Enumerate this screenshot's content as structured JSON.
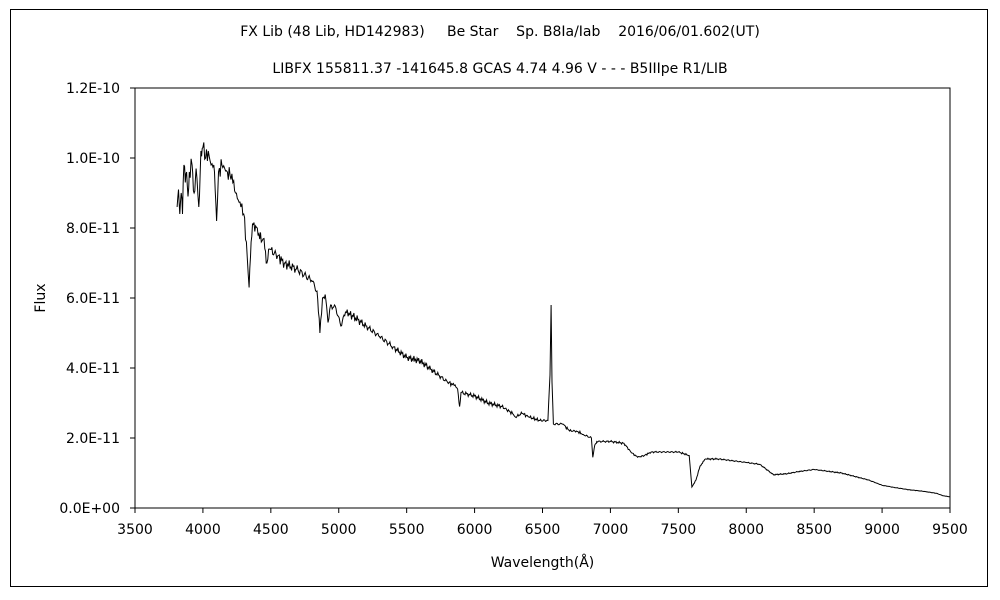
{
  "chart_data": {
    "type": "line",
    "title": "FX Lib (48 Lib, HD142983)     Be Star    Sp. B8Ia/Iab    2016/06/01.602(UT)",
    "subtitle": "LIBFX 155811.37 -141645.8 GCAS 4.74 4.96 V - - - B5IIIpe R1/LIB",
    "xlabel": "Wavelength(Å)",
    "ylabel": "Flux",
    "xlim": [
      3500,
      9500
    ],
    "ylim": [
      0,
      1.2e-10
    ],
    "x_ticks": [
      "3500",
      "4000",
      "4500",
      "5000",
      "5500",
      "6000",
      "6500",
      "7000",
      "7500",
      "8000",
      "8500",
      "9000",
      "9500"
    ],
    "y_ticks": [
      "0.0E+00",
      "2.0E-11",
      "4.0E-11",
      "6.0E-11",
      "8.0E-11",
      "1.0E-10",
      "1.2E-10"
    ],
    "grid": false,
    "legend": "none",
    "series": [
      {
        "color": "#000000",
        "points": [
          [
            3810,
            8.6e-11
          ],
          [
            3820,
            9.1e-11
          ],
          [
            3830,
            8.4e-11
          ],
          [
            3840,
            9e-11
          ],
          [
            3850,
            8.4e-11
          ],
          [
            3860,
            9.8e-11
          ],
          [
            3870,
            9.3e-11
          ],
          [
            3880,
            9.6e-11
          ],
          [
            3890,
            8.9e-11
          ],
          [
            3900,
            9.6e-11
          ],
          [
            3920,
            9.8e-11
          ],
          [
            3935,
            9e-11
          ],
          [
            3950,
            9.7e-11
          ],
          [
            3970,
            8.6e-11
          ],
          [
            3985,
            1.02e-10
          ],
          [
            4000,
            1.03e-10
          ],
          [
            4020,
            1e-10
          ],
          [
            4040,
            1.02e-10
          ],
          [
            4060,
            9.8e-11
          ],
          [
            4080,
            9.8e-11
          ],
          [
            4101,
            8.2e-11
          ],
          [
            4115,
            9.6e-11
          ],
          [
            4140,
            9.8e-11
          ],
          [
            4160,
            9.7e-11
          ],
          [
            4180,
            9.6e-11
          ],
          [
            4200,
            9.5e-11
          ],
          [
            4220,
            9.3e-11
          ],
          [
            4240,
            9e-11
          ],
          [
            4260,
            8.8e-11
          ],
          [
            4280,
            8.6e-11
          ],
          [
            4300,
            8.4e-11
          ],
          [
            4320,
            7.6e-11
          ],
          [
            4340,
            6.3e-11
          ],
          [
            4355,
            7.6e-11
          ],
          [
            4370,
            8.1e-11
          ],
          [
            4400,
            8e-11
          ],
          [
            4430,
            7.6e-11
          ],
          [
            4450,
            7.7e-11
          ],
          [
            4471,
            7e-11
          ],
          [
            4490,
            7.4e-11
          ],
          [
            4550,
            7.2e-11
          ],
          [
            4600,
            7e-11
          ],
          [
            4700,
            6.8e-11
          ],
          [
            4800,
            6.5e-11
          ],
          [
            4840,
            6.2e-11
          ],
          [
            4861,
            5e-11
          ],
          [
            4880,
            6e-11
          ],
          [
            4900,
            6.1e-11
          ],
          [
            4921,
            5.3e-11
          ],
          [
            4940,
            5.8e-11
          ],
          [
            4980,
            5.7e-11
          ],
          [
            5015,
            5.2e-11
          ],
          [
            5050,
            5.6e-11
          ],
          [
            5100,
            5.5e-11
          ],
          [
            5200,
            5.2e-11
          ],
          [
            5300,
            4.9e-11
          ],
          [
            5400,
            4.6e-11
          ],
          [
            5500,
            4.3e-11
          ],
          [
            5600,
            4.2e-11
          ],
          [
            5700,
            3.9e-11
          ],
          [
            5800,
            3.6e-11
          ],
          [
            5850,
            3.5e-11
          ],
          [
            5875,
            3.4e-11
          ],
          [
            5890,
            2.9e-11
          ],
          [
            5900,
            3.3e-11
          ],
          [
            6000,
            3.2e-11
          ],
          [
            6100,
            3e-11
          ],
          [
            6200,
            2.9e-11
          ],
          [
            6280,
            2.7e-11
          ],
          [
            6300,
            2.6e-11
          ],
          [
            6350,
            2.7e-11
          ],
          [
            6400,
            2.6e-11
          ],
          [
            6480,
            2.5e-11
          ],
          [
            6540,
            2.5e-11
          ],
          [
            6555,
            3.8e-11
          ],
          [
            6563,
            5.8e-11
          ],
          [
            6570,
            3.6e-11
          ],
          [
            6580,
            2.4e-11
          ],
          [
            6650,
            2.4e-11
          ],
          [
            6700,
            2.2e-11
          ],
          [
            6750,
            2.2e-11
          ],
          [
            6800,
            2.1e-11
          ],
          [
            6860,
            2e-11
          ],
          [
            6870,
            1.45e-11
          ],
          [
            6885,
            1.8e-11
          ],
          [
            6900,
            1.9e-11
          ],
          [
            7000,
            1.9e-11
          ],
          [
            7100,
            1.85e-11
          ],
          [
            7150,
            1.6e-11
          ],
          [
            7200,
            1.45e-11
          ],
          [
            7250,
            1.5e-11
          ],
          [
            7300,
            1.6e-11
          ],
          [
            7400,
            1.6e-11
          ],
          [
            7500,
            1.6e-11
          ],
          [
            7580,
            1.5e-11
          ],
          [
            7600,
            6e-12
          ],
          [
            7630,
            8e-12
          ],
          [
            7660,
            1.2e-11
          ],
          [
            7700,
            1.4e-11
          ],
          [
            7800,
            1.4e-11
          ],
          [
            7900,
            1.35e-11
          ],
          [
            8000,
            1.3e-11
          ],
          [
            8100,
            1.25e-11
          ],
          [
            8200,
            9.5e-12
          ],
          [
            8300,
            9.8e-12
          ],
          [
            8400,
            1.05e-11
          ],
          [
            8500,
            1.1e-11
          ],
          [
            8600,
            1.05e-11
          ],
          [
            8700,
            1e-11
          ],
          [
            8800,
            9e-12
          ],
          [
            8900,
            8e-12
          ],
          [
            9000,
            6.5e-12
          ],
          [
            9100,
            5.8e-12
          ],
          [
            9200,
            5.2e-12
          ],
          [
            9300,
            4.8e-12
          ],
          [
            9400,
            4.2e-12
          ],
          [
            9450,
            3.5e-12
          ],
          [
            9500,
            3.2e-12
          ]
        ]
      }
    ]
  }
}
